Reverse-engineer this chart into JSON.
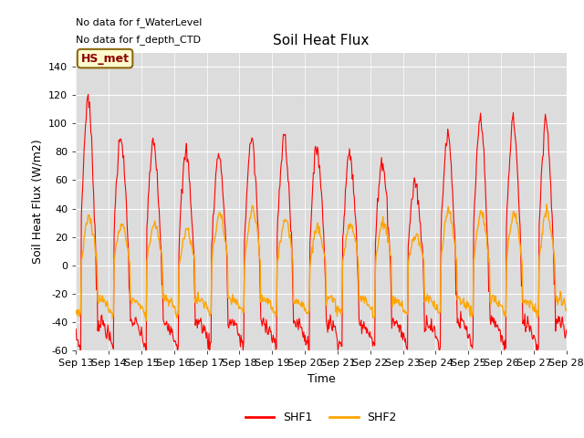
{
  "title": "Soil Heat Flux",
  "xlabel": "Time",
  "ylabel": "Soil Heat Flux (W/m2)",
  "ylim": [
    -60,
    150
  ],
  "yticks": [
    -60,
    -40,
    -20,
    0,
    20,
    40,
    60,
    80,
    100,
    120,
    140
  ],
  "x_labels": [
    "Sep 13",
    "Sep 14",
    "Sep 15",
    "Sep 16",
    "Sep 17",
    "Sep 18",
    "Sep 19",
    "Sep 20",
    "Sep 21",
    "Sep 22",
    "Sep 23",
    "Sep 24",
    "Sep 25",
    "Sep 26",
    "Sep 27",
    "Sep 28"
  ],
  "annotations": [
    "No data for f_WaterLevel",
    "No data for f_depth_CTD"
  ],
  "box_label": "HS_met",
  "shf1_color": "#FF0000",
  "shf2_color": "#FFA500",
  "bg_color": "#DCDCDC",
  "fig_color": "#FFFFFF",
  "legend_entries": [
    "SHF1",
    "SHF2"
  ],
  "title_fontsize": 11,
  "axis_label_fontsize": 9,
  "tick_fontsize": 8,
  "annotation_fontsize": 8,
  "n_days": 15,
  "shf1_peaks": [
    120,
    93,
    89,
    81,
    80,
    91,
    93,
    85,
    80,
    75,
    60,
    95,
    105
  ],
  "shf2_peaks": [
    35,
    30,
    30,
    25,
    37,
    40,
    32,
    28,
    30,
    32,
    22,
    40,
    38
  ],
  "shf1_trough": -50,
  "shf2_trough": -30
}
